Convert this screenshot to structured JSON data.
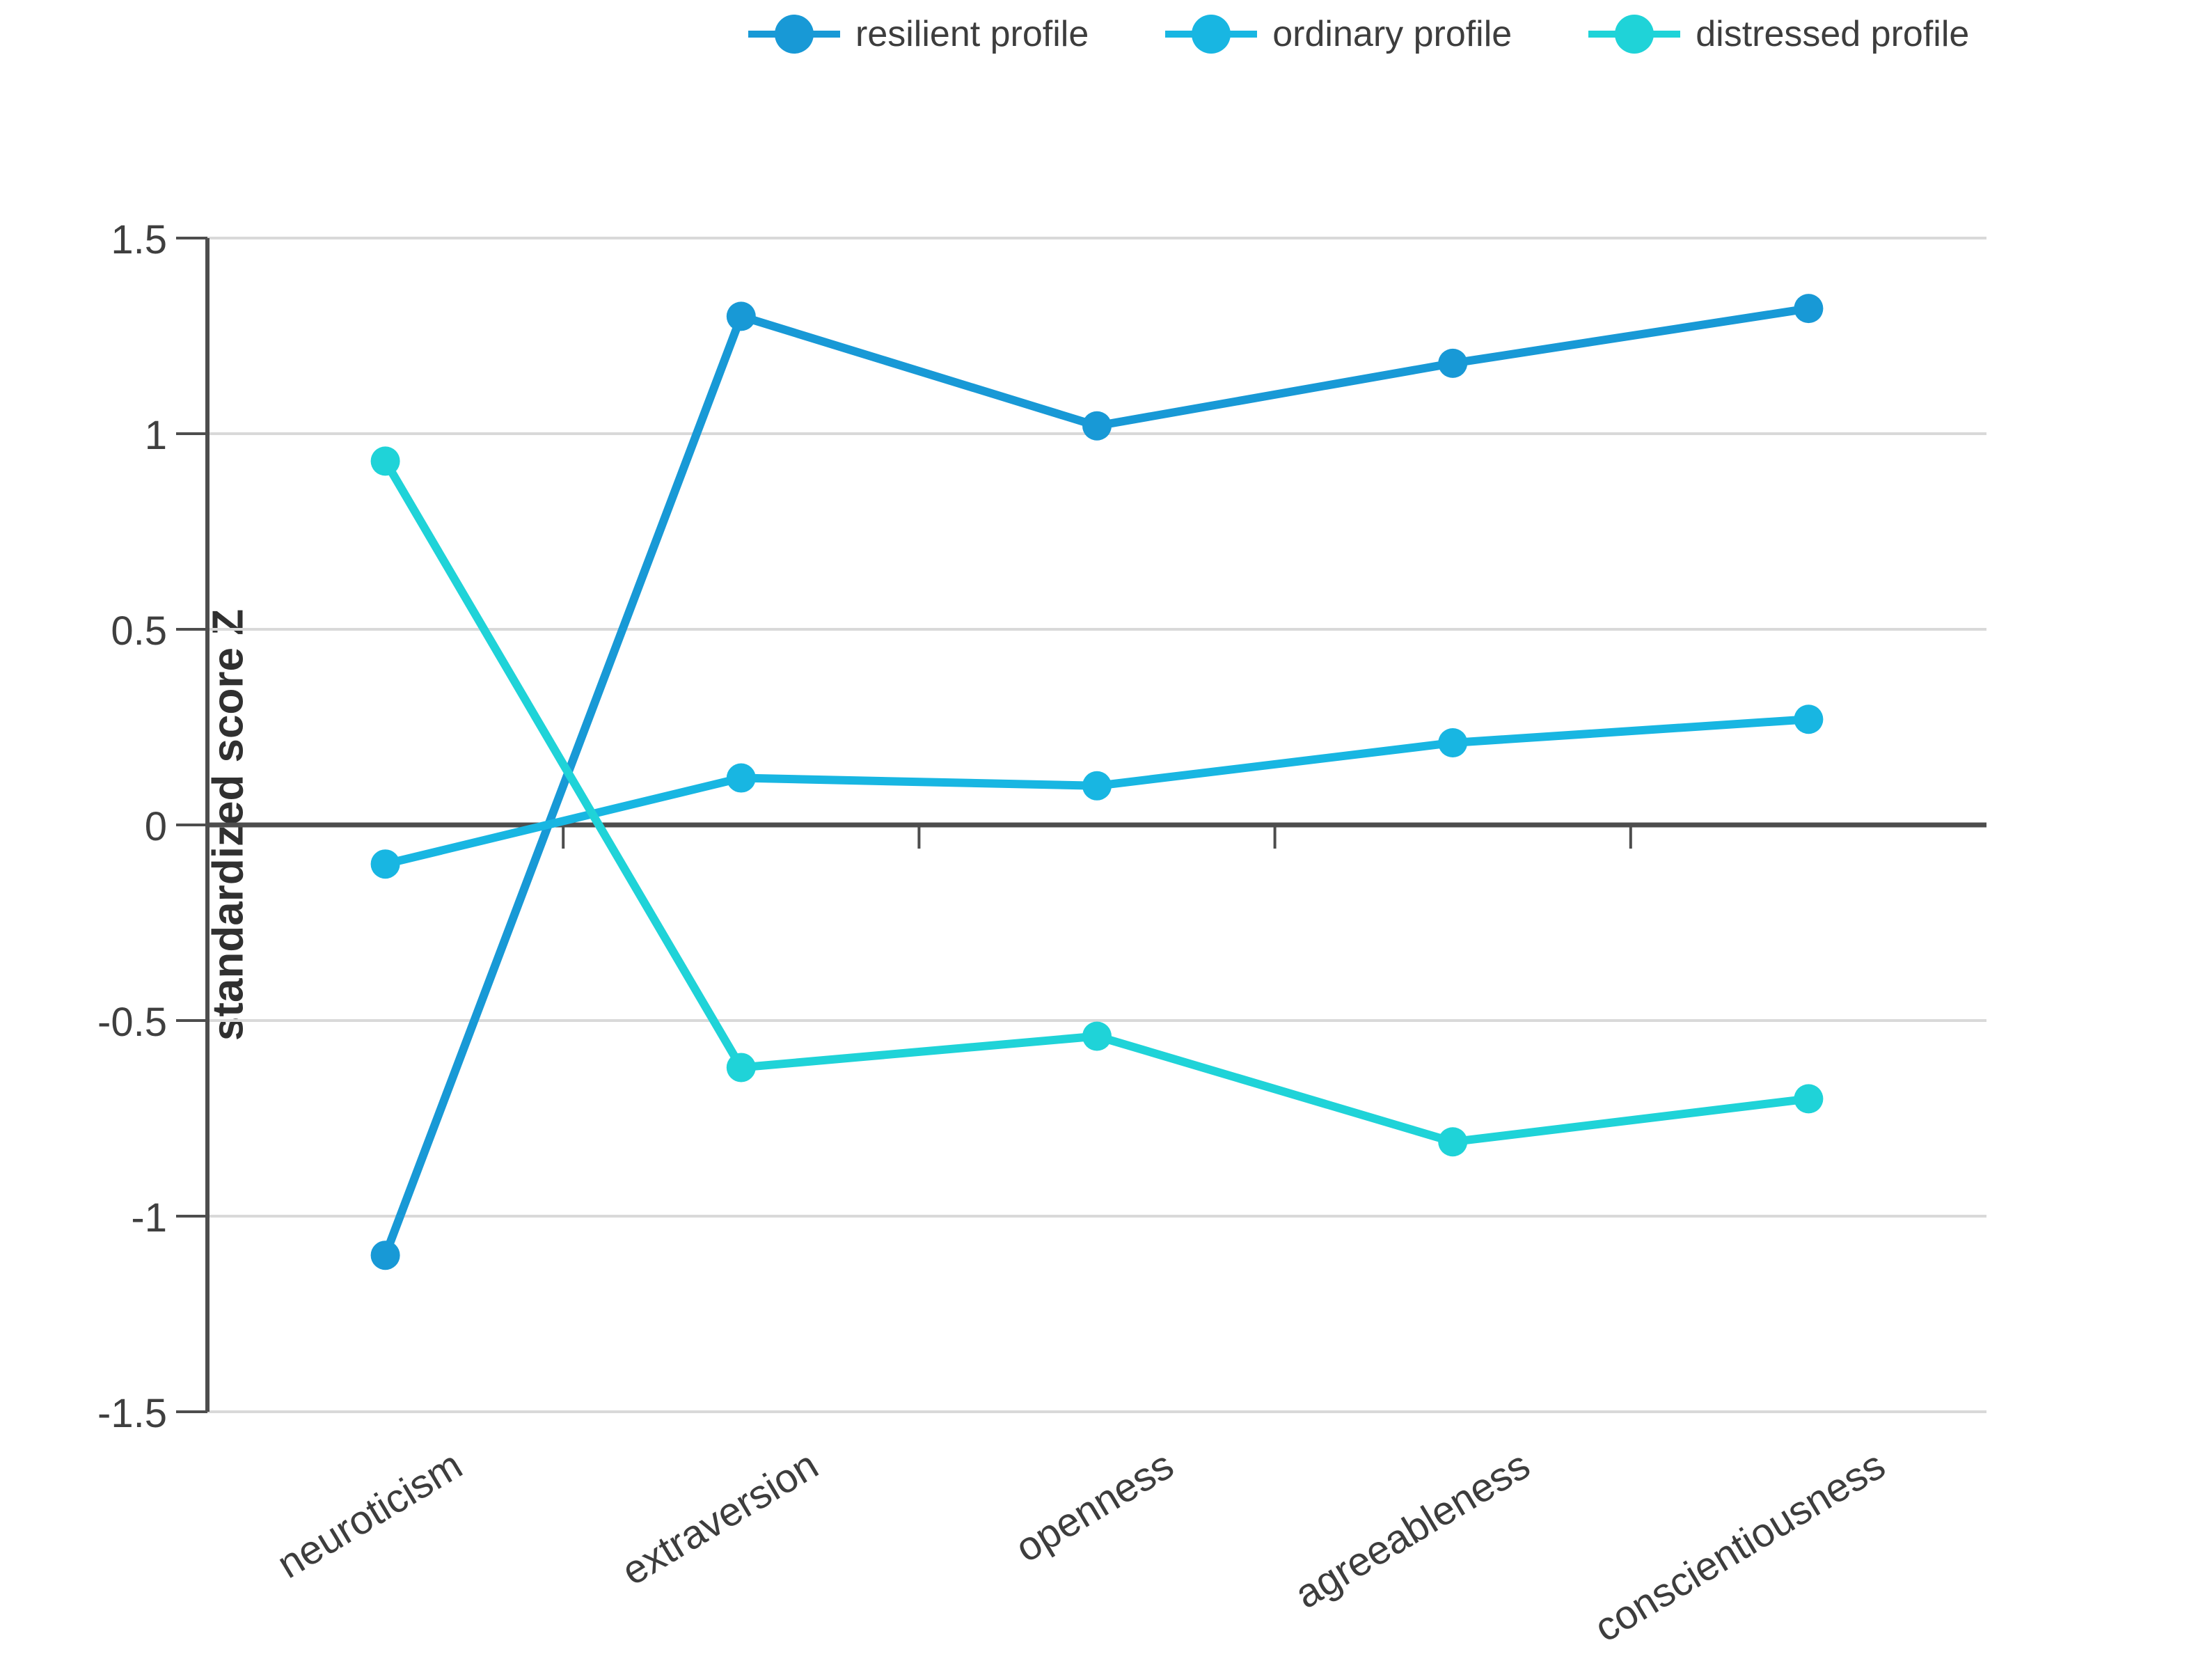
{
  "chart_data": {
    "type": "line",
    "title": "",
    "ylabel": "standardized score Z",
    "xlabel": "",
    "categories": [
      "neuroticism",
      "extraversion",
      "openness",
      "agreeableness",
      "conscientiousness"
    ],
    "series": [
      {
        "name": "resilient profile",
        "color": "#1899d6",
        "values": [
          -1.1,
          1.3,
          1.02,
          1.18,
          1.32
        ]
      },
      {
        "name": "ordinary profile",
        "color": "#18b6e2",
        "values": [
          -0.1,
          0.12,
          0.1,
          0.21,
          0.27
        ]
      },
      {
        "name": "distressed profile",
        "color": "#1fd3d8",
        "values": [
          0.93,
          -0.62,
          -0.54,
          -0.81,
          -0.7
        ]
      }
    ],
    "ylim": [
      -1.5,
      1.5
    ],
    "yticks": [
      1.5,
      1,
      0.5,
      0,
      -0.5,
      -1,
      -1.5
    ],
    "ytick_labels": [
      "1.5",
      "1",
      "0.5",
      "0",
      "-0.5",
      "-1",
      "-1.5"
    ],
    "grid": true,
    "legend_position": "top",
    "marker": "circle",
    "colors": {
      "grid": "#d9d9d9",
      "zero_line": "#4d4d4d",
      "axis": "#4d4d4d",
      "tick_text": "#3f3f3f",
      "label_text": "#3d3d3d"
    }
  }
}
